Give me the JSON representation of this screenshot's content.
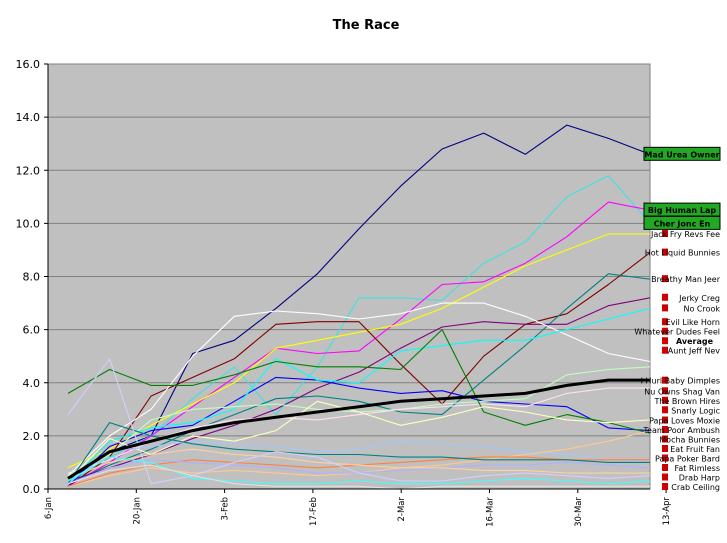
{
  "chart_data": {
    "type": "line",
    "title": "The Race",
    "xlabel": "",
    "ylabel": "",
    "ylim": [
      0,
      16
    ],
    "yticks": [
      "0.0",
      "2.0",
      "4.0",
      "6.0",
      "8.0",
      "10.0",
      "12.0",
      "14.0",
      "16.0"
    ],
    "xticks": [
      "6-Jan",
      "20-Jan",
      "3-Feb",
      "17-Feb",
      "2-Mar",
      "16-Mar",
      "30-Mar",
      "13-Apr"
    ],
    "grid": true,
    "plot_background": "#c0c0c0",
    "x": [
      "6-Jan",
      "13-Jan",
      "20-Jan",
      "27-Jan",
      "3-Feb",
      "10-Feb",
      "17-Feb",
      "24-Feb",
      "2-Mar",
      "9-Mar",
      "16-Mar",
      "23-Mar",
      "30-Mar",
      "6-Apr",
      "13-Apr"
    ],
    "series": [
      {
        "name": "Mad Urea Owner",
        "color": "#000080",
        "label_style": "green",
        "values": [
          0.3,
          1.4,
          2.0,
          5.1,
          5.6,
          6.8,
          8.1,
          9.8,
          11.4,
          12.8,
          13.4,
          12.6,
          13.7,
          13.2,
          12.6
        ]
      },
      {
        "name": "Cher Jonc En",
        "color": "#40e0e0",
        "label_style": "green",
        "values": [
          0.2,
          1.2,
          2.0,
          3.4,
          4.6,
          2.8,
          4.6,
          7.2,
          7.2,
          7.1,
          8.5,
          9.3,
          11.0,
          11.8,
          10.0
        ]
      },
      {
        "name": "Big Human Lap",
        "color": "#ff00ff",
        "label_style": "green",
        "values": [
          0.1,
          1.0,
          2.0,
          3.1,
          4.2,
          5.3,
          5.1,
          5.2,
          6.4,
          7.7,
          7.8,
          8.5,
          9.5,
          10.8,
          10.5
        ]
      },
      {
        "name": "Jack Fry Revs Fee",
        "color": "#ffff00",
        "label_style": "marker",
        "values": [
          0.8,
          1.5,
          2.4,
          3.2,
          4.0,
          5.3,
          5.6,
          5.9,
          6.2,
          6.8,
          7.6,
          8.4,
          9.0,
          9.6,
          9.6
        ]
      },
      {
        "name": "Hot Liquid Bunnies",
        "color": "#800000",
        "label_style": "marker",
        "values": [
          0.1,
          1.2,
          3.5,
          4.2,
          4.9,
          6.2,
          6.3,
          6.3,
          4.7,
          3.2,
          5.0,
          6.2,
          6.6,
          7.7,
          8.9
        ]
      },
      {
        "name": "Breathy Man Jeer",
        "color": "#008080",
        "label_style": "marker",
        "values": [
          0.2,
          0.9,
          1.5,
          2.2,
          2.8,
          3.4,
          3.5,
          3.3,
          2.9,
          2.8,
          4.1,
          5.4,
          6.8,
          8.1,
          7.9
        ]
      },
      {
        "name": "Jerky Creg",
        "color": "#800080",
        "label_style": "marker",
        "values": [
          0.3,
          0.8,
          1.3,
          1.9,
          2.4,
          3.0,
          3.8,
          4.4,
          5.3,
          6.1,
          6.3,
          6.2,
          6.2,
          6.9,
          7.2
        ]
      },
      {
        "name": "Nu Owns Shag Van",
        "color": "#0000ff",
        "label_style": "marker",
        "values": [
          0.1,
          1.6,
          2.2,
          2.4,
          3.3,
          4.2,
          4.1,
          3.8,
          3.6,
          3.7,
          3.3,
          3.2,
          3.1,
          2.3,
          2.2
        ]
      },
      {
        "name": "Evil Like Horn",
        "color": "#ffffff",
        "label_style": "marker",
        "values": [
          0.5,
          2.0,
          3.0,
          5.0,
          6.5,
          6.7,
          6.6,
          6.4,
          6.6,
          7.0,
          7.0,
          6.5,
          5.8,
          5.1,
          4.8
        ]
      },
      {
        "name": "No Crook",
        "color": "#00ffff",
        "label_style": "marker",
        "values": [
          0.2,
          1.8,
          2.3,
          2.5,
          3.0,
          4.9,
          4.1,
          4.0,
          5.2,
          5.4,
          5.6,
          5.6,
          6.0,
          6.4,
          6.8
        ]
      },
      {
        "name": "Average",
        "color": "#000000",
        "label_style": "bold",
        "values": [
          0.4,
          1.4,
          1.8,
          2.2,
          2.5,
          2.7,
          2.9,
          3.1,
          3.3,
          3.4,
          3.5,
          3.6,
          3.9,
          4.1,
          4.1
        ]
      },
      {
        "name": "Whatever Dudes Feel",
        "color": "#c0ffc0",
        "label_style": "marker",
        "values": [
          0.5,
          1.3,
          2.6,
          3.0,
          3.1,
          3.2,
          3.0,
          2.9,
          3.0,
          3.2,
          3.3,
          3.4,
          4.3,
          4.5,
          4.6
        ]
      },
      {
        "name": "Aunt Jeff Nev",
        "color": "#ffe0f0",
        "label_style": "marker",
        "values": [
          0.6,
          1.1,
          1.8,
          2.3,
          2.6,
          2.7,
          2.6,
          2.8,
          3.0,
          3.1,
          3.2,
          3.1,
          3.6,
          3.8,
          3.8
        ]
      },
      {
        "name": "Snarly Logic",
        "color": "#008000",
        "label_style": "marker",
        "values": [
          3.6,
          4.5,
          3.9,
          3.9,
          4.3,
          4.8,
          4.6,
          4.6,
          4.5,
          6.0,
          2.9,
          2.4,
          2.8,
          2.5,
          2.1
        ]
      },
      {
        "name": "I Hurl Baby Dimples",
        "color": "#ffffc0",
        "label_style": "marker",
        "values": [
          0.3,
          1.9,
          1.3,
          2.0,
          1.8,
          2.2,
          3.3,
          2.9,
          2.4,
          2.7,
          3.1,
          2.9,
          2.6,
          2.5,
          2.6
        ]
      },
      {
        "name": "Team Poor Ambush",
        "color": "#a0c8ff",
        "label_style": "marker",
        "values": [
          0.2,
          1.4,
          1.6,
          1.8,
          1.7,
          1.6,
          1.4,
          1.5,
          1.8,
          1.7,
          1.6,
          1.4,
          1.3,
          1.1,
          1.0
        ]
      },
      {
        "name": "The Brown Hires",
        "color": "#ffc890",
        "label_style": "marker",
        "values": [
          0.1,
          0.5,
          0.8,
          0.6,
          0.7,
          0.6,
          0.5,
          0.6,
          0.8,
          0.9,
          1.1,
          1.3,
          1.5,
          1.8,
          2.2
        ]
      },
      {
        "name": "Papa Loves Moxie",
        "color": "#ff8040",
        "label_style": "marker",
        "values": [
          0.1,
          0.6,
          0.9,
          1.1,
          1.0,
          0.9,
          0.8,
          0.9,
          1.0,
          1.1,
          1.2,
          1.2,
          1.1,
          1.1,
          1.1
        ]
      },
      {
        "name": "Eat Fruit Fan",
        "color": "#b0b0ff",
        "label_style": "marker",
        "values": [
          0.2,
          0.8,
          1.1,
          1.0,
          0.9,
          0.8,
          0.6,
          0.6,
          0.7,
          0.8,
          0.9,
          0.9,
          1.0,
          0.9,
          0.8
        ]
      },
      {
        "name": "Papa Poker Bard",
        "color": "#ffd0a0",
        "label_style": "marker",
        "values": [
          0.4,
          1.0,
          1.3,
          1.5,
          1.3,
          1.2,
          1.0,
          0.9,
          0.8,
          0.8,
          0.7,
          0.7,
          0.6,
          0.6,
          0.6
        ]
      },
      {
        "name": "Mocha Bunnies",
        "color": "#008080",
        "label_style": "marker",
        "values": [
          0.2,
          2.5,
          2.0,
          1.7,
          1.5,
          1.4,
          1.3,
          1.3,
          1.2,
          1.2,
          1.1,
          1.1,
          1.1,
          1.0,
          1.0
        ]
      },
      {
        "name": "Fat Rimless",
        "color": "#d0d0ff",
        "label_style": "marker",
        "values": [
          2.8,
          4.9,
          0.2,
          0.5,
          1.0,
          1.4,
          1.2,
          0.6,
          0.3,
          0.3,
          0.5,
          0.6,
          0.5,
          0.4,
          0.5
        ]
      },
      {
        "name": "Drab Harp",
        "color": "#40ffff",
        "label_style": "marker",
        "values": [
          0.3,
          1.2,
          1.0,
          0.4,
          0.3,
          0.2,
          0.2,
          0.3,
          0.2,
          0.2,
          0.3,
          0.4,
          0.3,
          0.2,
          0.3
        ]
      },
      {
        "name": "Crab Ceiling",
        "color": "#e0e0e0",
        "label_style": "marker",
        "values": [
          0.2,
          0.7,
          0.9,
          0.5,
          0.2,
          0.1,
          0.1,
          0.1,
          0.0,
          0.1,
          0.1,
          0.1,
          0.1,
          0.1,
          0.1
        ]
      }
    ]
  }
}
